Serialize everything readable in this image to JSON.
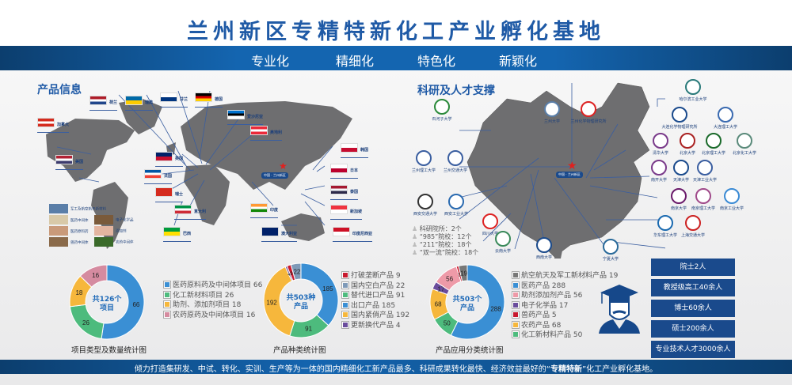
{
  "header": {
    "title": "兰州新区专精特新化工产业孵化基地",
    "slogans": [
      "专业化",
      "精细化",
      "特色化",
      "新颖化"
    ]
  },
  "products": {
    "title": "产品信息",
    "center_label": "中国 · 兰州新区",
    "countries": [
      "荷兰",
      "瑞典",
      "芬兰",
      "德国",
      "加拿大",
      "爱沙尼亚",
      "奥地利",
      "美国",
      "英国",
      "法国",
      "瑞士",
      "意大利",
      "巴西",
      "韩国",
      "日本",
      "泰国",
      "新加坡",
      "印度尼西亚",
      "印度",
      "澳大利亚"
    ],
    "categories": [
      "军工及航空航天新材料",
      "医药中间体",
      "电子化学品",
      "医药原料药",
      "添加剂",
      "兽药中间体",
      "农药中间体"
    ]
  },
  "research": {
    "title": "科研及人才支撑",
    "center_label": "中国 · 兰州新区",
    "institutions": [
      "石河子大学",
      "兰州大学",
      "兰州化学物理研究所",
      "兰州理工大学",
      "兰州交通大学",
      "西安交通大学",
      "西安工业大学",
      "四川大学",
      "云南大学",
      "西南大学",
      "宁夏大学",
      "哈尔滨工业大学",
      "大连化学物理研究所",
      "大连理工大学",
      "清华大学",
      "北京大学",
      "北京理工大学",
      "北京化工大学",
      "南开大学",
      "天津大学",
      "天津工业大学",
      "南京大学",
      "南京理工大学",
      "南京工业大学",
      "华东理工大学",
      "上海交通大学"
    ],
    "stats": [
      "科研院所：2个",
      "“985”院校：12个",
      "“211”院校：18个",
      "“双一流”院校：18个"
    ],
    "talent": [
      "院士2人",
      "教授级高工40余人",
      "博士60余人",
      "硕士200余人",
      "专业技术人才3000余人"
    ],
    "icon": "graduate-icon"
  },
  "chart_data": [
    {
      "type": "pie",
      "title": "项目类型及数量统计图",
      "center_text": [
        "共126个",
        "项目"
      ],
      "categories": [
        "医药原料药及中间体项目",
        "化工新材料项目",
        "助剂、添加剂项目",
        "农药原药及中间体项目"
      ],
      "values": [
        66,
        26,
        18,
        16
      ],
      "colors": [
        "#3a8fd4",
        "#4dbb7d",
        "#f6b73c",
        "#d58ba0"
      ],
      "legend": "right"
    },
    {
      "type": "pie",
      "title": "产品种类统计图",
      "center_text": [
        "共503种",
        "产品"
      ],
      "categories": [
        "打破垄断产品",
        "国内空白产品",
        "替代进口产品",
        "出口产品",
        "国内紧俏产品",
        "更新换代产品"
      ],
      "values": [
        9,
        22,
        91,
        185,
        192,
        4
      ],
      "colors": [
        "#c8192e",
        "#7f9ab8",
        "#4dbb7d",
        "#3a8fd4",
        "#f6b73c",
        "#6a4c9c"
      ],
      "draw_order": [
        3,
        2,
        4,
        5,
        0,
        1
      ],
      "legend": "right"
    },
    {
      "type": "pie",
      "title": "产品应用分类统计图",
      "center_text": [
        "共503个",
        "产品"
      ],
      "categories": [
        "航空航天及军工新材料产品",
        "医药产品",
        "助剂添加剂产品",
        "电子化学品",
        "兽药产品",
        "农药产品",
        "化工新材料产品"
      ],
      "values": [
        19,
        288,
        56,
        17,
        5,
        68,
        50
      ],
      "colors": [
        "#777777",
        "#3a8fd4",
        "#ee9aa8",
        "#6a4c9c",
        "#c8192e",
        "#f6b73c",
        "#4dbb7d"
      ],
      "draw_order": [
        1,
        6,
        5,
        3,
        2,
        4,
        0
      ],
      "legend": "right"
    }
  ],
  "footer": {
    "text_before": "倾力打造集研发、中试、转化、实训、生产等为一体的国内精细化工新产品最多、科研成果转化最快、经济效益最好的“",
    "text_bold": "专精特新",
    "text_after": "”化工产业孵化基地。"
  }
}
